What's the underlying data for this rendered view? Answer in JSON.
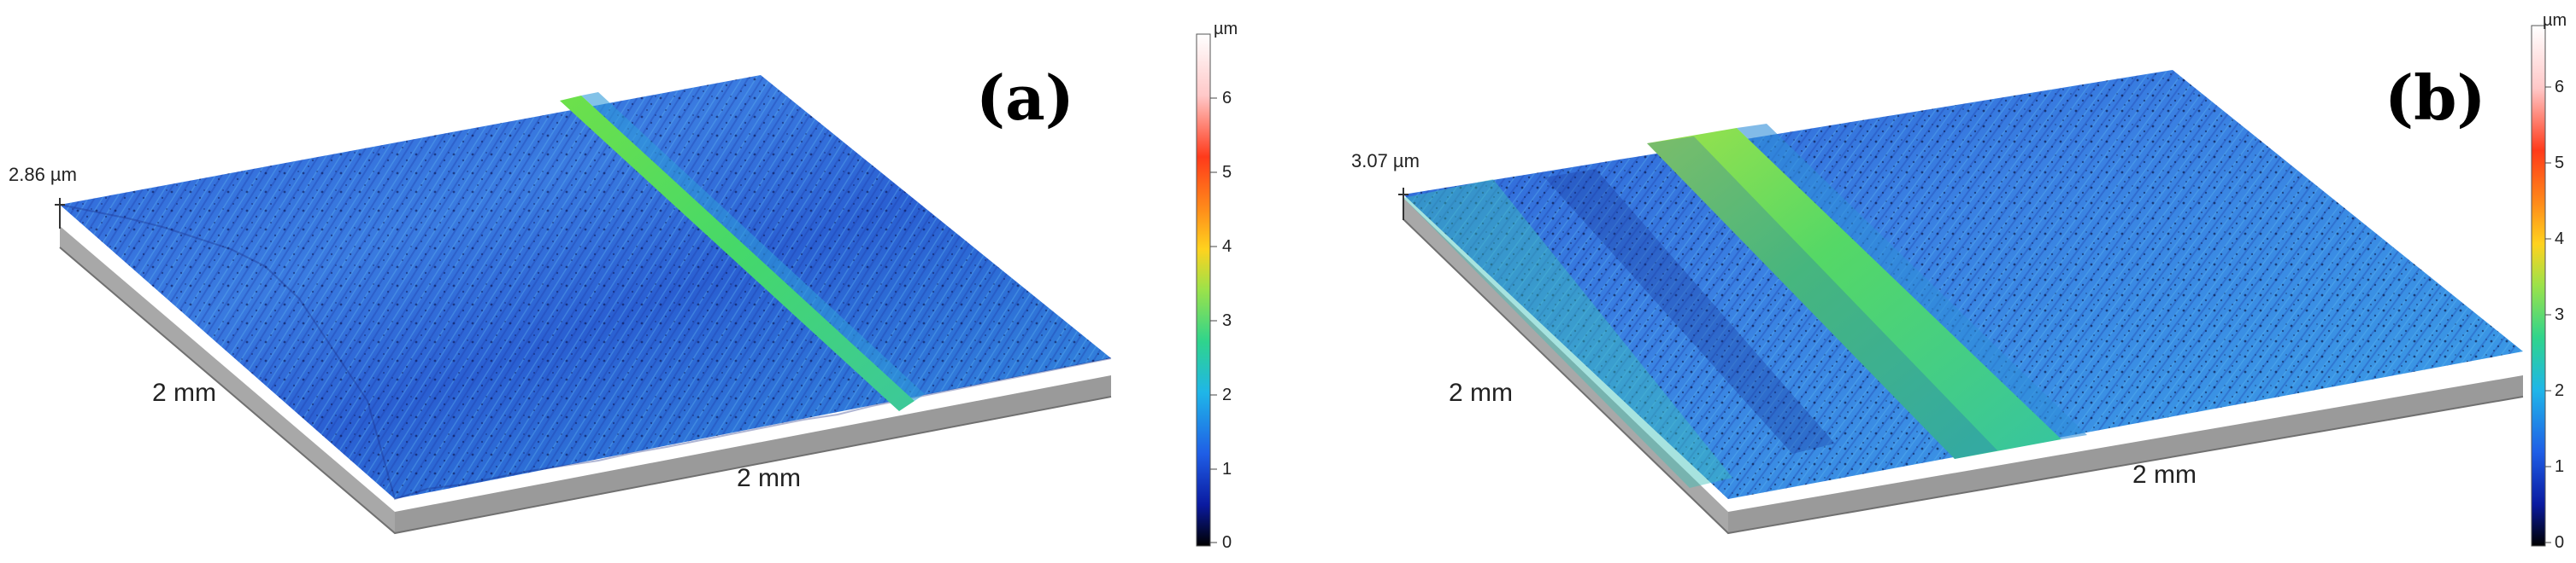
{
  "figure": {
    "colors": {
      "surface_base": "#2f66d8",
      "surface_dark": "#1a33a8",
      "surface_light": "#3fb0e6",
      "ridge_green": "#45d86a",
      "ridge_yellow": "#b7e64a",
      "side_wall": "#a8a8a8",
      "side_wall_dark": "#8e8e8e"
    },
    "colorbar": {
      "unit": "µm",
      "ticks": [
        "0",
        "1",
        "2",
        "3",
        "4",
        "5",
        "6"
      ],
      "stops": [
        "#000000",
        "#0a1aa0",
        "#1f5ee6",
        "#1fb6e8",
        "#2fd48c",
        "#9be24a",
        "#ffd21e",
        "#ff8a1a",
        "#ff3a1a",
        "#ffc8c8",
        "#ffffff"
      ]
    },
    "panels": [
      {
        "label": "(a)",
        "height_label": "2.86 µm",
        "x_label": "2 mm",
        "y_label": "2 mm"
      },
      {
        "label": "(b)",
        "height_label": "3.07 µm",
        "x_label": "2 mm",
        "y_label": "2 mm"
      }
    ]
  }
}
